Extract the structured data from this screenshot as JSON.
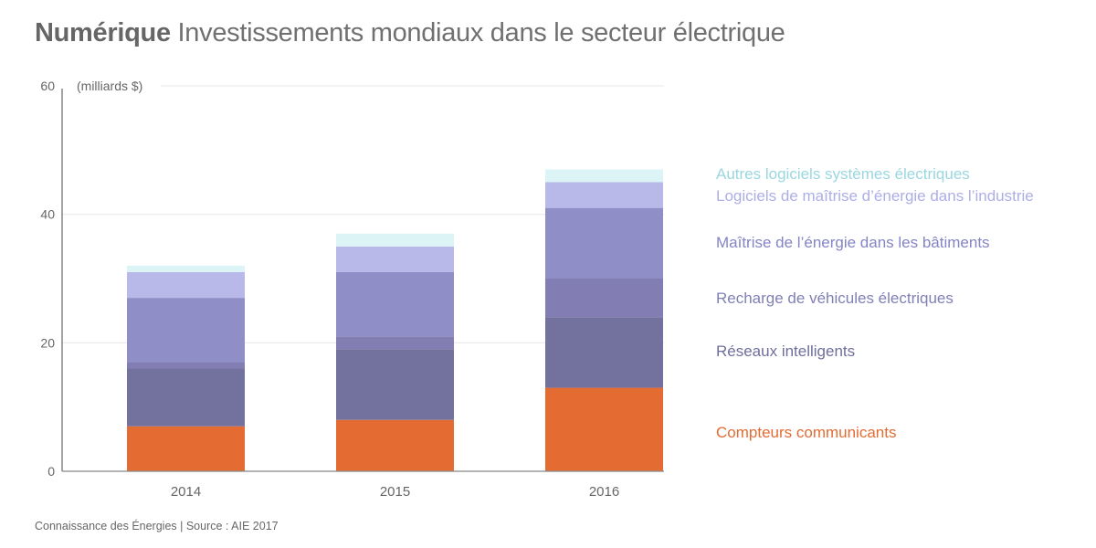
{
  "title": {
    "bold": "Numérique",
    "rest": " Investissements mondiaux dans le secteur électrique"
  },
  "source": "Connaissance des Énergies | Source : AIE 2017",
  "chart_data": {
    "type": "bar",
    "stacked": true,
    "title": "Numérique Investissements mondiaux dans le secteur électrique",
    "xlabel": "",
    "ylabel": "(milliards $)",
    "ylim": [
      0,
      60
    ],
    "yticks": [
      0,
      20,
      40,
      60
    ],
    "grid": true,
    "legend_position": "right",
    "categories": [
      "2014",
      "2015",
      "2016"
    ],
    "series": [
      {
        "name": "Compteurs communicants",
        "color": "#e46c32",
        "values": [
          7,
          8,
          13
        ]
      },
      {
        "name": "Réseaux intelligents",
        "color": "#73719e",
        "values": [
          9,
          11,
          11
        ]
      },
      {
        "name": "Recharge de véhicules électriques",
        "color": "#827db2",
        "values": [
          1,
          2,
          6
        ]
      },
      {
        "name": "Maîtrise de l’énergie dans les bâtiments",
        "color": "#8f8ec7",
        "values": [
          10,
          10,
          11
        ]
      },
      {
        "name": "Logiciels de maîtrise d’énergie dans l’industrie",
        "color": "#b8b9e9",
        "values": [
          4,
          4,
          4
        ]
      },
      {
        "name": "Autres logiciels systèmes électriques",
        "color": "#ddf4f7",
        "values": [
          1,
          2,
          2
        ]
      }
    ],
    "legend_text_colors": {
      "Compteurs communicants": "#e46c32",
      "Réseaux intelligents": "#6f6e9c",
      "Recharge de véhicules électriques": "#8180b6",
      "Maîtrise de l’énergie dans les bâtiments": "#8584c4",
      "Logiciels de maîtrise d’énergie dans l’industrie": "#adaee6",
      "Autres logiciels systèmes électriques": "#9ad7e0"
    }
  }
}
